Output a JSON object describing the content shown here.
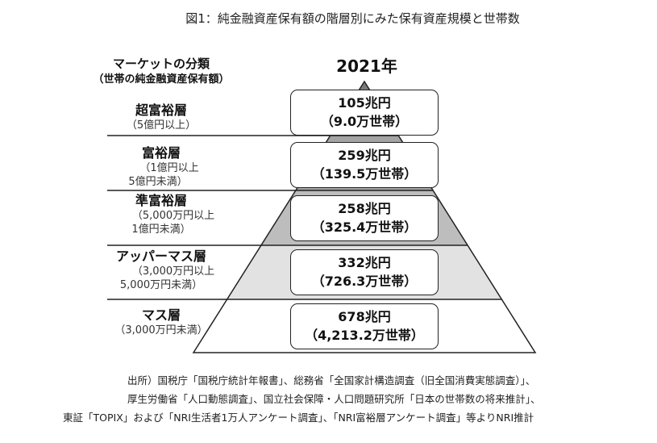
{
  "title": "図1：純金融資産保有額の階層別にみた保有資産規模と世帯数",
  "year": "2021年",
  "category_header": {
    "title": "マーケットの分類",
    "subtitle": "（世帯の純金融資産保有額）"
  },
  "tiers": [
    {
      "name": "超富裕層",
      "range": [
        "（5億円以上）"
      ],
      "assets": "105兆円",
      "households": "（9.0万世帯）",
      "fill": "#7a7a7a"
    },
    {
      "name": "富裕層",
      "range": [
        "（1億円以上",
        "5億円未満）"
      ],
      "assets": "259兆円",
      "households": "（139.5万世帯）",
      "fill": "#a4a4a4"
    },
    {
      "name": "準富裕層",
      "range": [
        "（5,000万円以上",
        "1億円未満）"
      ],
      "assets": "258兆円",
      "households": "（325.4万世帯）",
      "fill": "#bdbdbd"
    },
    {
      "name": "アッパーマス層",
      "range": [
        "（3,000万円以上",
        "5,000万円未満）"
      ],
      "assets": "332兆円",
      "households": "（726.3万世帯）",
      "fill": "#e2e2e2"
    },
    {
      "name": "マス層",
      "range": [
        "（3,000万円未満）"
      ],
      "assets": "678兆円",
      "households": "（4,213.2万世帯）",
      "fill": "#ffffff"
    }
  ],
  "source": [
    "出所）国税庁「国税庁統計年報書」、総務省「全国家計構造調査（旧全国消費実態調査）」、",
    "厚生労働省「人口動態調査」、国立社会保障・人口問題研究所「日本の世帯数の将来推計」、",
    "東証「TOPIX」および「NRI生活者1万人アンケート調査」、「NRI富裕層アンケート調査」等よりNRI推計"
  ]
}
